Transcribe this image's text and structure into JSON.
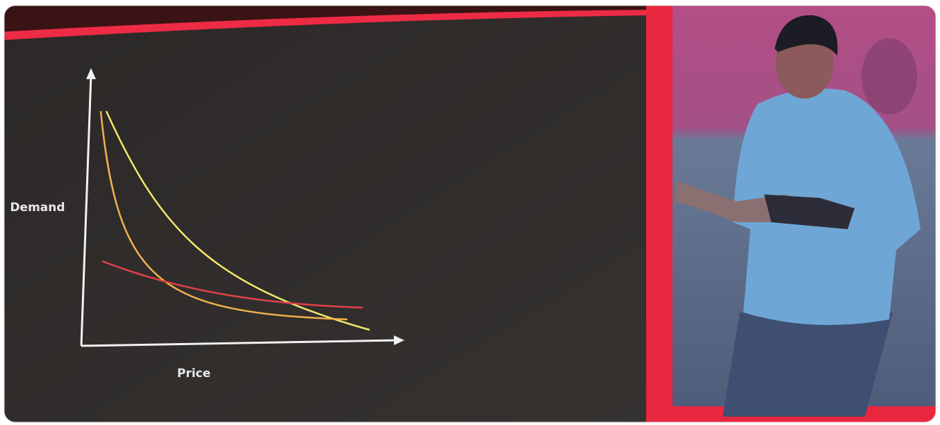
{
  "slide": {
    "y_axis_label": "Demand",
    "x_axis_label": "Price"
  }
}
